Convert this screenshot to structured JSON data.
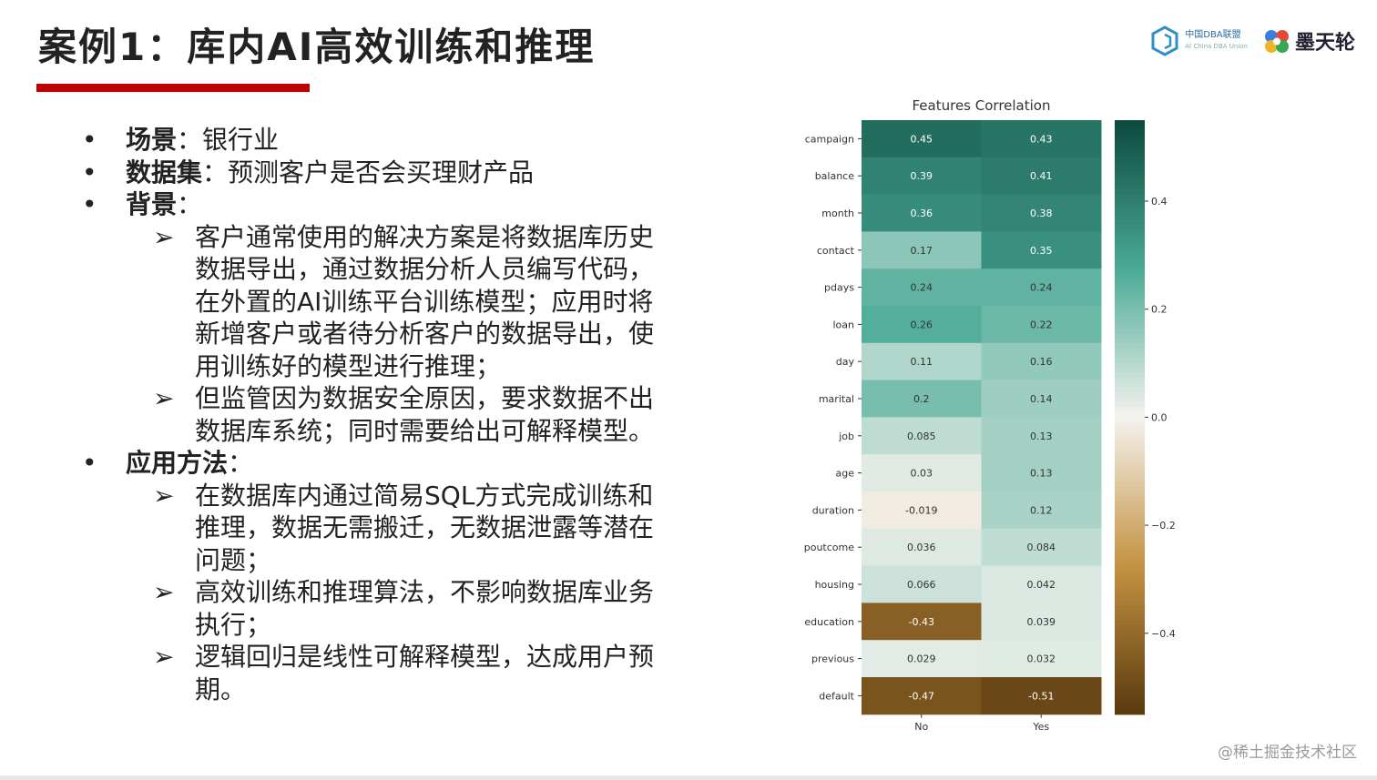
{
  "slide": {
    "title": "案例1：库内AI高效训练和推理",
    "logos": {
      "org_cn": "中国DBA联盟",
      "org_en": "AI China DBA Union",
      "brand": "墨天轮"
    },
    "bullets": [
      {
        "key": "场景",
        "sep": "：",
        "text": "银行业"
      },
      {
        "key": "数据集",
        "sep": "：",
        "text": "预测客户是否会买理财产品"
      },
      {
        "key": "背景",
        "sep": "：",
        "text": ""
      }
    ],
    "background_items": [
      "客户通常使用的解决方案是将数据库历史数据导出，通过数据分析人员编写代码，在外置的AI训练平台训练模型；应用时将新增客户或者待分析客户的数据导出，使用训练好的模型进行推理；",
      "但监管因为数据安全原因，要求数据不出数据库系统；同时需要给出可解释模型。"
    ],
    "method": {
      "key": "应用方法",
      "sep": "："
    },
    "method_items": [
      "在数据库内通过简易SQL方式完成训练和推理，数据无需搬迁，无数据泄露等潜在问题；",
      "高效训练和推理算法，不影响数据库业务执行；",
      "逻辑回归是线性可解释模型，达成用户预期。"
    ],
    "bullet_symbol": "•",
    "arrow_symbol": "➢",
    "watermark": "@稀土掘金技术社区"
  },
  "chart_data": {
    "type": "heatmap",
    "title": "Features Correlation",
    "columns": [
      "No",
      "Yes"
    ],
    "rows": [
      "campaign",
      "balance",
      "month",
      "contact",
      "pdays",
      "loan",
      "day",
      "marital",
      "job",
      "age",
      "duration",
      "poutcome",
      "housing",
      "education",
      "previous",
      "default"
    ],
    "values": [
      [
        0.45,
        0.43
      ],
      [
        0.39,
        0.41
      ],
      [
        0.36,
        0.38
      ],
      [
        0.17,
        0.35
      ],
      [
        0.24,
        0.24
      ],
      [
        0.26,
        0.22
      ],
      [
        0.11,
        0.16
      ],
      [
        0.2,
        0.14
      ],
      [
        0.085,
        0.13
      ],
      [
        0.03,
        0.13
      ],
      [
        -0.019,
        0.12
      ],
      [
        0.036,
        0.084
      ],
      [
        0.066,
        0.042
      ],
      [
        -0.43,
        0.039
      ],
      [
        0.029,
        0.032
      ],
      [
        -0.47,
        -0.51
      ]
    ],
    "labels": [
      [
        "0.45",
        "0.43"
      ],
      [
        "0.39",
        "0.41"
      ],
      [
        "0.36",
        "0.38"
      ],
      [
        "0.17",
        "0.35"
      ],
      [
        "0.24",
        "0.24"
      ],
      [
        "0.26",
        "0.22"
      ],
      [
        "0.11",
        "0.16"
      ],
      [
        "0.2",
        "0.14"
      ],
      [
        "0.085",
        "0.13"
      ],
      [
        "0.03",
        "0.13"
      ],
      [
        "-0.019",
        "0.12"
      ],
      [
        "0.036",
        "0.084"
      ],
      [
        "0.066",
        "0.042"
      ],
      [
        "-0.43",
        "0.039"
      ],
      [
        "0.029",
        "0.032"
      ],
      [
        "-0.47",
        "-0.51"
      ]
    ],
    "colorbar": {
      "range": [
        -0.55,
        0.55
      ],
      "ticks": [
        0.4,
        0.2,
        0.0,
        -0.2,
        -0.4
      ],
      "tick_labels": [
        "0.4",
        "0.2",
        "0.0",
        "−0.2",
        "−0.4"
      ],
      "cmap_low": "#5a3a0e",
      "cmap_mid": "#f4f3ee",
      "cmap_high": "#0d4a3f"
    }
  }
}
